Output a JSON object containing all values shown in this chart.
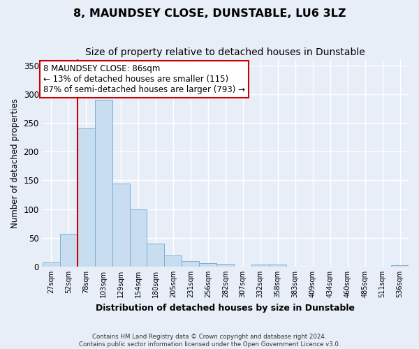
{
  "title": "8, MAUNDSEY CLOSE, DUNSTABLE, LU6 3LZ",
  "subtitle": "Size of property relative to detached houses in Dunstable",
  "xlabel": "Distribution of detached houses by size in Dunstable",
  "ylabel": "Number of detached properties",
  "footer_line1": "Contains HM Land Registry data © Crown copyright and database right 2024.",
  "footer_line2": "Contains public sector information licensed under the Open Government Licence v3.0.",
  "bar_labels": [
    "27sqm",
    "52sqm",
    "78sqm",
    "103sqm",
    "129sqm",
    "154sqm",
    "180sqm",
    "205sqm",
    "231sqm",
    "256sqm",
    "282sqm",
    "307sqm",
    "332sqm",
    "358sqm",
    "383sqm",
    "409sqm",
    "434sqm",
    "460sqm",
    "485sqm",
    "511sqm",
    "536sqm"
  ],
  "bar_values": [
    7,
    57,
    240,
    290,
    145,
    100,
    40,
    19,
    10,
    6,
    5,
    0,
    3,
    3,
    0,
    0,
    0,
    0,
    0,
    0,
    2
  ],
  "bar_color": "#c9ddf0",
  "bar_edgecolor": "#7aafd4",
  "vline_x": 1.5,
  "vline_color": "#cc0000",
  "ylim": [
    0,
    360
  ],
  "yticks": [
    0,
    50,
    100,
    150,
    200,
    250,
    300,
    350
  ],
  "annotation_text": "8 MAUNDSEY CLOSE: 86sqm\n← 13% of detached houses are smaller (115)\n87% of semi-detached houses are larger (793) →",
  "annotation_box_color": "#cc0000",
  "bg_color": "#e8eef8",
  "plot_bg_color": "#e8eef8",
  "grid_color": "#ffffff",
  "title_fontsize": 11.5,
  "subtitle_fontsize": 10,
  "annotation_fontsize": 8.5,
  "xlabel_fontsize": 9,
  "ylabel_fontsize": 8.5
}
